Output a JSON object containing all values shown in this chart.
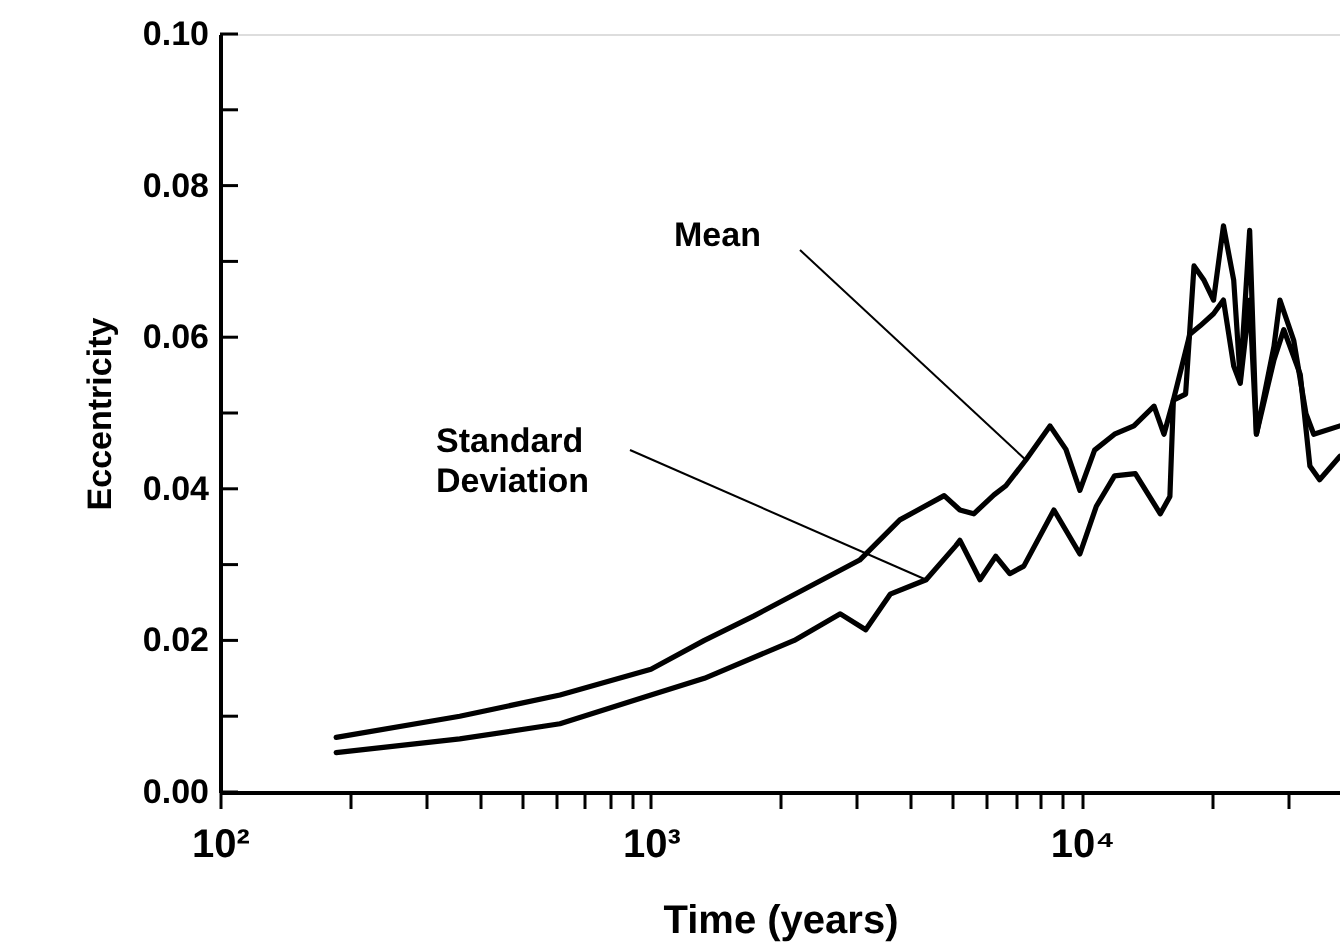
{
  "chart_data": {
    "type": "line",
    "xlabel": "Time (years)",
    "ylabel": "Eccentricity",
    "log": "x",
    "grid": false,
    "marker": "none",
    "line_style": "solid",
    "xlim": [
      100,
      39700
    ],
    "ylim": [
      0,
      0.1
    ],
    "xticks": [
      {
        "value": 100,
        "label": "10²"
      },
      {
        "value": 200,
        "label": null
      },
      {
        "value": 300,
        "label": null
      },
      {
        "value": 400,
        "label": null
      },
      {
        "value": 500,
        "label": null
      },
      {
        "value": 600,
        "label": null
      },
      {
        "value": 700,
        "label": null
      },
      {
        "value": 800,
        "label": null
      },
      {
        "value": 900,
        "label": null
      },
      {
        "value": 1000,
        "label": "10³"
      },
      {
        "value": 2000,
        "label": null
      },
      {
        "value": 3000,
        "label": null
      },
      {
        "value": 4000,
        "label": null
      },
      {
        "value": 5000,
        "label": null
      },
      {
        "value": 6000,
        "label": null
      },
      {
        "value": 7000,
        "label": null
      },
      {
        "value": 8000,
        "label": null
      },
      {
        "value": 9000,
        "label": null
      },
      {
        "value": 10000,
        "label": "10⁴"
      },
      {
        "value": 20000,
        "label": null
      },
      {
        "value": 30000,
        "label": null
      }
    ],
    "yticks": [
      {
        "value": 0,
        "label": "0.00"
      },
      {
        "value": 0.01,
        "label": null
      },
      {
        "value": 0.02,
        "label": "0.02"
      },
      {
        "value": 0.03,
        "label": null
      },
      {
        "value": 0.04,
        "label": "0.04"
      },
      {
        "value": 0.05,
        "label": null
      },
      {
        "value": 0.06,
        "label": "0.06"
      },
      {
        "value": 0.07,
        "label": null
      },
      {
        "value": 0.08,
        "label": "0.08"
      },
      {
        "value": 0.09,
        "label": null
      },
      {
        "value": 0.1,
        "label": "0.10"
      }
    ],
    "series": [
      {
        "color": "#000000",
        "x": [
          186,
          360,
          615,
          1000,
          1330,
          1730,
          3050,
          3780,
          4790,
          5210,
          5610,
          6250,
          6660,
          7410,
          8430,
          9180,
          9890,
          10700,
          11900,
          13200,
          14700,
          15500,
          16300,
          17400,
          18200,
          19200,
          20200,
          21300,
          22500,
          23300,
          24500,
          25400,
          27900,
          28800,
          31000,
          33100,
          34500,
          39700
        ],
        "values": [
          0.0072,
          0.01,
          0.0128,
          0.0162,
          0.02,
          0.0232,
          0.0306,
          0.0359,
          0.0391,
          0.0372,
          0.0367,
          0.0392,
          0.0404,
          0.0438,
          0.0483,
          0.0452,
          0.0398,
          0.0451,
          0.0472,
          0.0483,
          0.0509,
          0.0472,
          0.0517,
          0.0525,
          0.0694,
          0.0675,
          0.0649,
          0.0747,
          0.0675,
          0.0544,
          0.0741,
          0.0472,
          0.0588,
          0.0649,
          0.0596,
          0.0499,
          0.0472,
          0.0483
        ]
      },
      {
        "color": "#000000",
        "x": [
          186,
          360,
          615,
          1000,
          1330,
          2150,
          2750,
          3150,
          3590,
          4350,
          5100,
          5210,
          5800,
          6310,
          6800,
          7330,
          8610,
          9890,
          10800,
          11900,
          13300,
          15200,
          16000,
          16300,
          17800,
          18800,
          20200,
          21300,
          22500,
          23300,
          24500,
          25400,
          27900,
          29400,
          32100,
          33800,
          35600,
          39700
        ],
        "values": [
          0.0052,
          0.007,
          0.009,
          0.0128,
          0.015,
          0.02,
          0.0235,
          0.0214,
          0.0261,
          0.028,
          0.0325,
          0.0332,
          0.028,
          0.0311,
          0.0288,
          0.0298,
          0.0372,
          0.0314,
          0.0377,
          0.0417,
          0.042,
          0.0367,
          0.039,
          0.0517,
          0.0604,
          0.0615,
          0.0631,
          0.0649,
          0.0562,
          0.0539,
          0.0649,
          0.0472,
          0.057,
          0.061,
          0.0551,
          0.043,
          0.0412,
          0.0443
        ]
      }
    ],
    "annotations": [
      {
        "text": "Mean",
        "x": 7410,
        "y": 0.0438
      },
      {
        "text": "Standard\nDeviation",
        "x": 4350,
        "y": 0.028
      }
    ]
  }
}
